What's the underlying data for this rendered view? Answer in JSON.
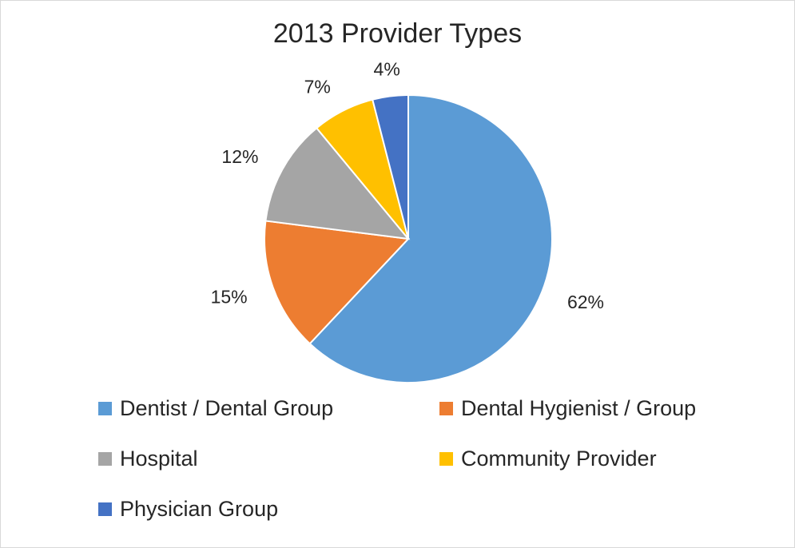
{
  "chart_data": {
    "type": "pie",
    "title": "2013 Provider Types",
    "categories": [
      "Dentist / Dental Group",
      "Dental Hygienist / Group",
      "Hospital",
      "Community Provider",
      "Physician Group"
    ],
    "values": [
      62,
      15,
      12,
      7,
      4
    ],
    "labels": [
      "62%",
      "15%",
      "12%",
      "7%",
      "4%"
    ],
    "colors": [
      "#5b9bd5",
      "#ed7d31",
      "#a5a5a5",
      "#ffc000",
      "#4472c4"
    ],
    "legend_position": "bottom"
  }
}
